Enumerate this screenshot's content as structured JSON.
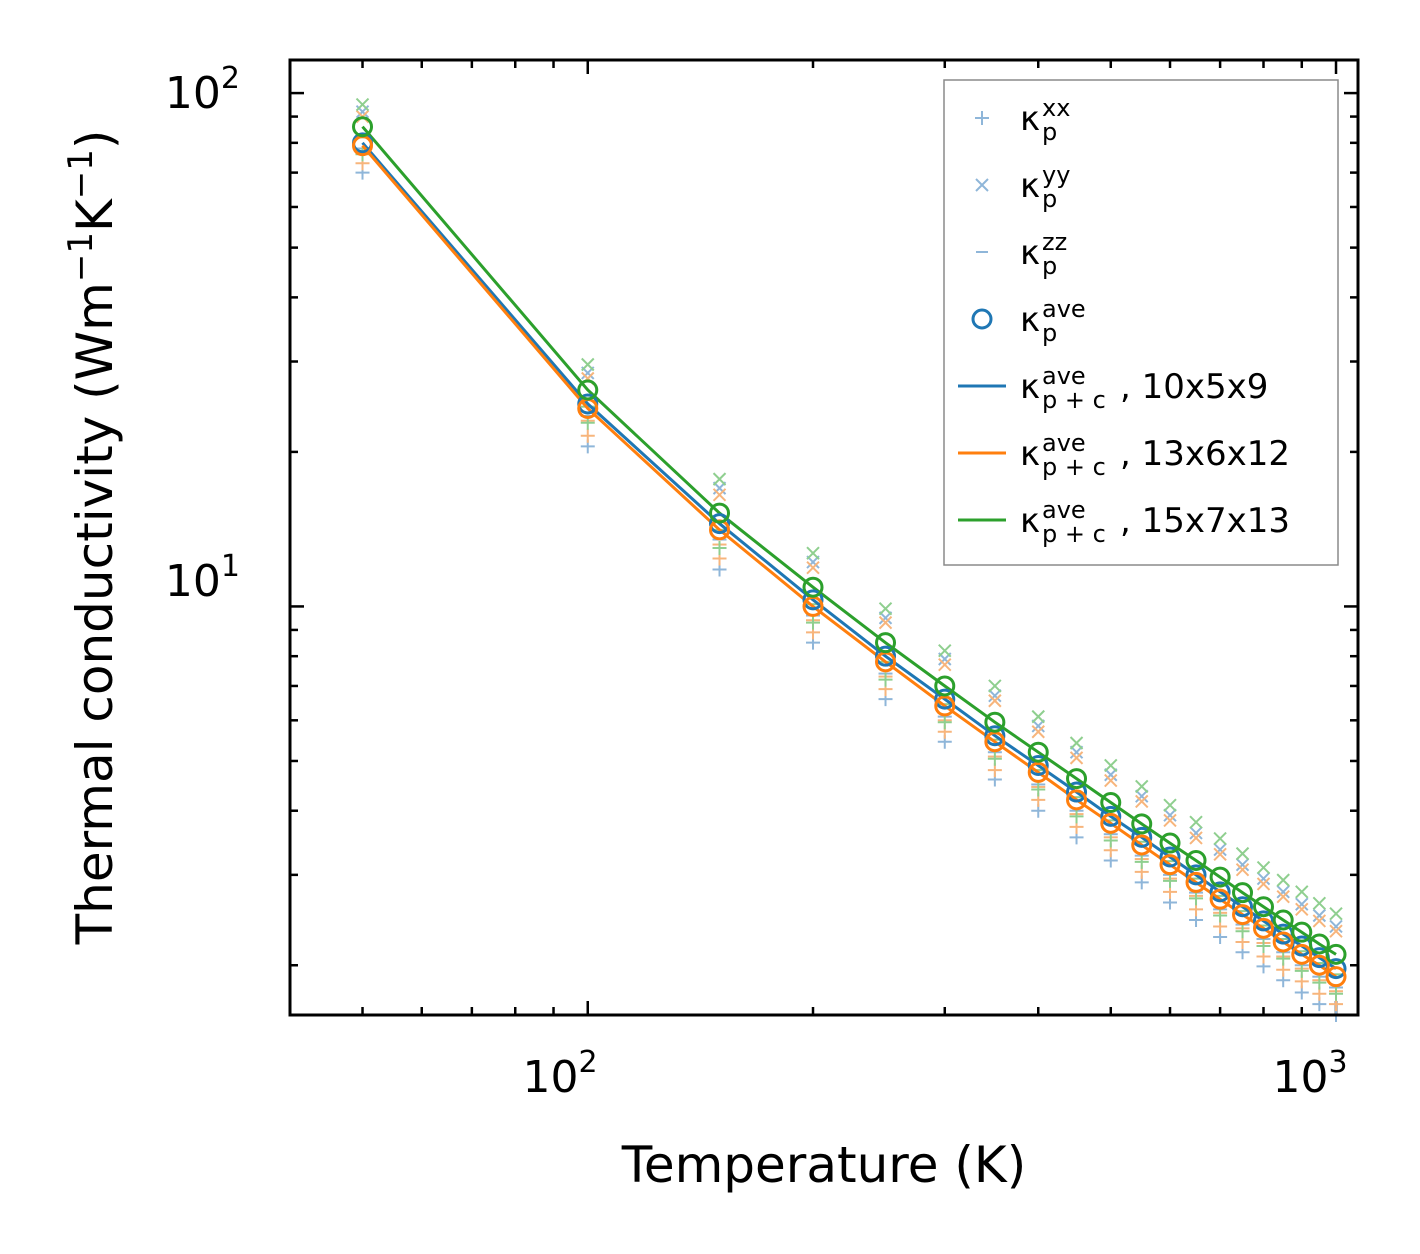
{
  "chart_data": {
    "type": "line",
    "xscale": "log",
    "yscale": "log",
    "xlabel": "Temperature (K)",
    "ylabel": {
      "prefix": "Thermal conductivity (Wm",
      "exp1": "−1",
      "mid": "K",
      "exp2": "−1",
      "suffix": ")"
    },
    "xlim": [
      40,
      1070
    ],
    "ylim": [
      1.6,
      116
    ],
    "xticks": [
      {
        "base": "10",
        "exp": "2",
        "value": 100
      },
      {
        "base": "10",
        "exp": "3",
        "value": 1000
      }
    ],
    "yticks": [
      {
        "base": "10",
        "exp": "1",
        "value": 10
      },
      {
        "base": "10",
        "exp": "2",
        "value": 100
      }
    ],
    "temperatures": [
      50,
      100,
      150,
      200,
      250,
      300,
      350,
      400,
      450,
      500,
      550,
      600,
      650,
      700,
      750,
      800,
      850,
      900,
      950,
      1000
    ],
    "series": [
      {
        "name": "10x5x9",
        "color": "#1f77b4",
        "ave": [
          80,
          24.8,
          14.5,
          10.3,
          8.0,
          6.6,
          5.6,
          4.9,
          4.35,
          3.9,
          3.55,
          3.25,
          3.0,
          2.78,
          2.6,
          2.44,
          2.3,
          2.18,
          2.07,
          1.97
        ],
        "xx": [
          70,
          20.5,
          11.8,
          8.5,
          6.6,
          5.45,
          4.6,
          4.0,
          3.55,
          3.2,
          2.9,
          2.65,
          2.45,
          2.27,
          2.12,
          1.99,
          1.87,
          1.77,
          1.68,
          1.6
        ],
        "yy": [
          92,
          28.5,
          17.0,
          12.2,
          9.5,
          7.9,
          6.7,
          5.85,
          5.2,
          4.7,
          4.27,
          3.92,
          3.62,
          3.36,
          3.14,
          2.95,
          2.78,
          2.63,
          2.5,
          2.38
        ],
        "zz": [
          78,
          23.5,
          13.5,
          9.6,
          7.4,
          6.1,
          5.2,
          4.5,
          4.0,
          3.6,
          3.27,
          3.0,
          2.77,
          2.57,
          2.4,
          2.25,
          2.12,
          2.0,
          1.9,
          1.81
        ]
      },
      {
        "name": "13x6x12",
        "color": "#ff7f0e",
        "ave": [
          79,
          24.3,
          14.1,
          10.0,
          7.8,
          6.4,
          5.45,
          4.75,
          4.2,
          3.78,
          3.43,
          3.14,
          2.9,
          2.69,
          2.51,
          2.36,
          2.22,
          2.1,
          2.0,
          1.9
        ],
        "xx": [
          73,
          21.5,
          12.4,
          8.9,
          6.9,
          5.7,
          4.8,
          4.2,
          3.72,
          3.35,
          3.04,
          2.78,
          2.57,
          2.38,
          2.22,
          2.08,
          1.96,
          1.86,
          1.76,
          1.68
        ],
        "yy": [
          90,
          27.8,
          16.5,
          11.9,
          9.3,
          7.7,
          6.55,
          5.7,
          5.07,
          4.58,
          4.17,
          3.83,
          3.54,
          3.29,
          3.07,
          2.88,
          2.72,
          2.57,
          2.44,
          2.33
        ],
        "zz": [
          77,
          23.0,
          13.2,
          9.4,
          7.3,
          6.0,
          5.1,
          4.45,
          3.94,
          3.55,
          3.22,
          2.95,
          2.73,
          2.53,
          2.36,
          2.21,
          2.08,
          1.97,
          1.87,
          1.78
        ]
      },
      {
        "name": "15x7x13",
        "color": "#2ca02c",
        "ave": [
          86,
          26.4,
          15.2,
          10.9,
          8.5,
          7.0,
          5.95,
          5.2,
          4.62,
          4.15,
          3.77,
          3.46,
          3.2,
          2.97,
          2.77,
          2.6,
          2.45,
          2.32,
          2.2,
          2.1
        ],
        "xx": [
          76,
          22.8,
          13.0,
          9.3,
          7.2,
          5.95,
          5.05,
          4.4,
          3.9,
          3.5,
          3.18,
          2.92,
          2.7,
          2.5,
          2.33,
          2.18,
          2.06,
          1.95,
          1.85,
          1.76
        ],
        "yy": [
          95,
          29.6,
          17.7,
          12.7,
          9.9,
          8.2,
          7.0,
          6.1,
          5.42,
          4.9,
          4.46,
          4.1,
          3.8,
          3.53,
          3.3,
          3.1,
          2.93,
          2.78,
          2.64,
          2.52
        ],
        "zz": [
          82,
          24.5,
          14.1,
          10.1,
          7.8,
          6.45,
          5.5,
          4.8,
          4.25,
          3.83,
          3.48,
          3.19,
          2.95,
          2.73,
          2.55,
          2.39,
          2.25,
          2.13,
          2.02,
          1.92
        ]
      }
    ],
    "legend": {
      "location": "upper-right",
      "entries": [
        {
          "kappa": "κ",
          "sub": "p",
          "sup": "xx",
          "suffix": "",
          "marker": "plus",
          "color": "#8fb6d9"
        },
        {
          "kappa": "κ",
          "sub": "p",
          "sup": "yy",
          "suffix": "",
          "marker": "cross",
          "color": "#8fb6d9"
        },
        {
          "kappa": "κ",
          "sub": "p",
          "sup": "zz",
          "suffix": "",
          "marker": "dash",
          "color": "#8fb6d9"
        },
        {
          "kappa": "κ",
          "sub": "p",
          "sup": "ave",
          "suffix": "",
          "marker": "circle",
          "color": "#1f77b4"
        },
        {
          "kappa": "κ",
          "sub": "p + c",
          "sup": "ave",
          "suffix": ", 10x5x9",
          "marker": "line",
          "color": "#1f77b4"
        },
        {
          "kappa": "κ",
          "sub": "p + c",
          "sup": "ave",
          "suffix": ", 13x6x12",
          "marker": "line",
          "color": "#ff7f0e"
        },
        {
          "kappa": "κ",
          "sub": "p + c",
          "sup": "ave",
          "suffix": ", 15x7x13",
          "marker": "line",
          "color": "#2ca02c"
        }
      ]
    }
  }
}
